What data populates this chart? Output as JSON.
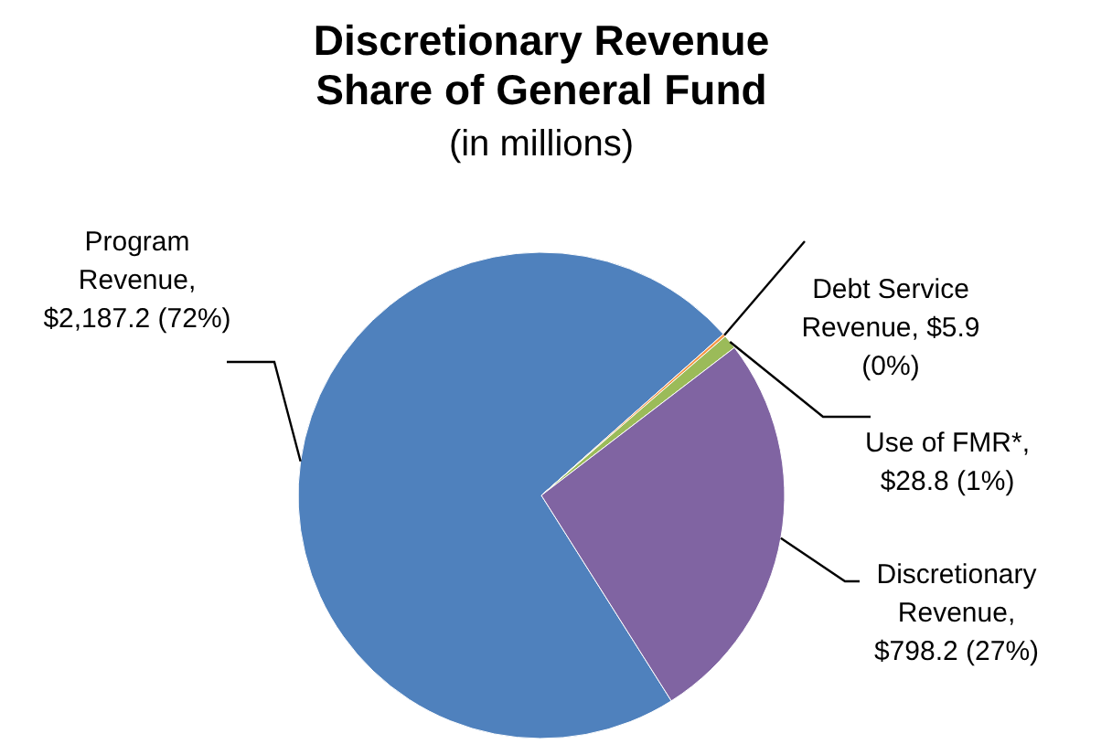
{
  "chart_data": {
    "type": "pie",
    "title": "Discretionary Revenue Share of General Fund",
    "subtitle": "(in millions)",
    "categories": [
      "Program Revenue",
      "Debt Service Revenue",
      "Use of FMR*",
      "Discretionary Revenue"
    ],
    "values": [
      2187.2,
      5.9,
      28.8,
      798.2
    ],
    "value_labels": [
      ", $2,187.2 (72%)",
      ", $5.9 (0%)",
      ", $28.8 (1%)",
      ", $798.2 (27%)"
    ],
    "colors": [
      "#4f81bd",
      "#f79646",
      "#9bbb59",
      "#8064a2"
    ],
    "legend": false
  }
}
